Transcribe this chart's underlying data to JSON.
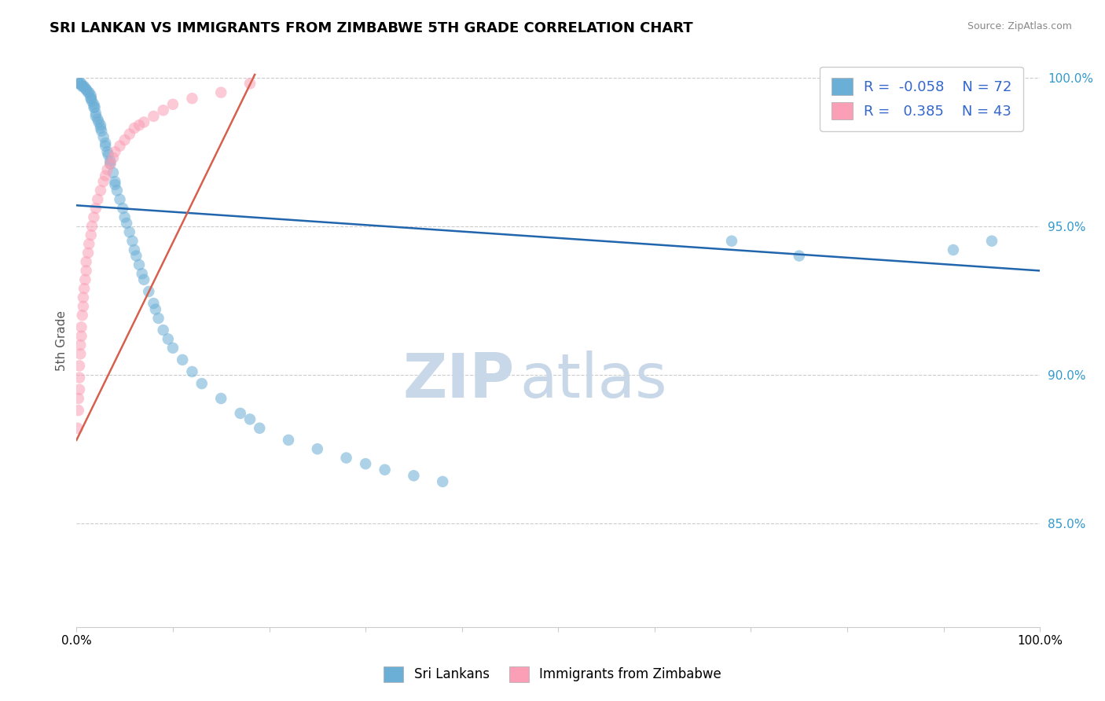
{
  "title": "SRI LANKAN VS IMMIGRANTS FROM ZIMBABWE 5TH GRADE CORRELATION CHART",
  "source_text": "Source: ZipAtlas.com",
  "ylabel": "5th Grade",
  "xlim": [
    0.0,
    1.0
  ],
  "ylim": [
    0.815,
    1.008
  ],
  "ytick_labels": [
    "85.0%",
    "90.0%",
    "95.0%",
    "100.0%"
  ],
  "ytick_values": [
    0.85,
    0.9,
    0.95,
    1.0
  ],
  "xtick_labels": [
    "0.0%",
    "",
    "",
    "",
    "",
    "",
    "",
    "",
    "",
    "",
    "100.0%"
  ],
  "xtick_values": [
    0.0,
    0.1,
    0.2,
    0.3,
    0.4,
    0.5,
    0.6,
    0.7,
    0.8,
    0.9,
    1.0
  ],
  "legend_r_blue": "-0.058",
  "legend_n_blue": "72",
  "legend_r_pink": "0.385",
  "legend_n_pink": "43",
  "blue_color": "#6baed6",
  "pink_color": "#fa9fb5",
  "trendline_blue_color": "#2166ac",
  "trendline_pink_color": "#d6604d",
  "watermark_zip": "ZIP",
  "watermark_atlas": "atlas",
  "watermark_color": "#c8d8e8",
  "blue_scatter_x": [
    0.002,
    0.003,
    0.004,
    0.005,
    0.006,
    0.007,
    0.008,
    0.01,
    0.01,
    0.012,
    0.013,
    0.015,
    0.015,
    0.015,
    0.016,
    0.018,
    0.018,
    0.019,
    0.02,
    0.02,
    0.022,
    0.023,
    0.025,
    0.025,
    0.026,
    0.028,
    0.03,
    0.03,
    0.032,
    0.033,
    0.035,
    0.035,
    0.038,
    0.04,
    0.04,
    0.042,
    0.045,
    0.048,
    0.05,
    0.052,
    0.055,
    0.058,
    0.06,
    0.062,
    0.065,
    0.068,
    0.07,
    0.075,
    0.08,
    0.082,
    0.085,
    0.09,
    0.095,
    0.1,
    0.11,
    0.12,
    0.13,
    0.15,
    0.17,
    0.18,
    0.19,
    0.22,
    0.25,
    0.28,
    0.3,
    0.32,
    0.35,
    0.38,
    0.68,
    0.75,
    0.91,
    0.95
  ],
  "blue_scatter_y": [
    0.998,
    0.998,
    0.998,
    0.998,
    0.997,
    0.997,
    0.997,
    0.996,
    0.996,
    0.995,
    0.995,
    0.994,
    0.993,
    0.993,
    0.992,
    0.991,
    0.99,
    0.99,
    0.988,
    0.987,
    0.986,
    0.985,
    0.984,
    0.983,
    0.982,
    0.98,
    0.978,
    0.977,
    0.975,
    0.974,
    0.972,
    0.971,
    0.968,
    0.965,
    0.964,
    0.962,
    0.959,
    0.956,
    0.953,
    0.951,
    0.948,
    0.945,
    0.942,
    0.94,
    0.937,
    0.934,
    0.932,
    0.928,
    0.924,
    0.922,
    0.919,
    0.915,
    0.912,
    0.909,
    0.905,
    0.901,
    0.897,
    0.892,
    0.887,
    0.885,
    0.882,
    0.878,
    0.875,
    0.872,
    0.87,
    0.868,
    0.866,
    0.864,
    0.945,
    0.94,
    0.942,
    0.945
  ],
  "pink_scatter_x": [
    0.001,
    0.002,
    0.002,
    0.003,
    0.003,
    0.003,
    0.004,
    0.004,
    0.005,
    0.005,
    0.006,
    0.007,
    0.007,
    0.008,
    0.009,
    0.01,
    0.01,
    0.012,
    0.013,
    0.015,
    0.016,
    0.018,
    0.02,
    0.022,
    0.025,
    0.028,
    0.03,
    0.032,
    0.035,
    0.038,
    0.04,
    0.045,
    0.05,
    0.055,
    0.06,
    0.065,
    0.07,
    0.08,
    0.09,
    0.1,
    0.12,
    0.15,
    0.18
  ],
  "pink_scatter_y": [
    0.882,
    0.888,
    0.892,
    0.895,
    0.899,
    0.903,
    0.907,
    0.91,
    0.913,
    0.916,
    0.92,
    0.923,
    0.926,
    0.929,
    0.932,
    0.935,
    0.938,
    0.941,
    0.944,
    0.947,
    0.95,
    0.953,
    0.956,
    0.959,
    0.962,
    0.965,
    0.967,
    0.969,
    0.971,
    0.973,
    0.975,
    0.977,
    0.979,
    0.981,
    0.983,
    0.984,
    0.985,
    0.987,
    0.989,
    0.991,
    0.993,
    0.995,
    0.998
  ],
  "blue_trendline_x": [
    0.0,
    1.0
  ],
  "blue_trendline_y": [
    0.957,
    0.935
  ],
  "pink_trendline_x": [
    0.0,
    0.185
  ],
  "pink_trendline_y": [
    0.878,
    1.001
  ]
}
